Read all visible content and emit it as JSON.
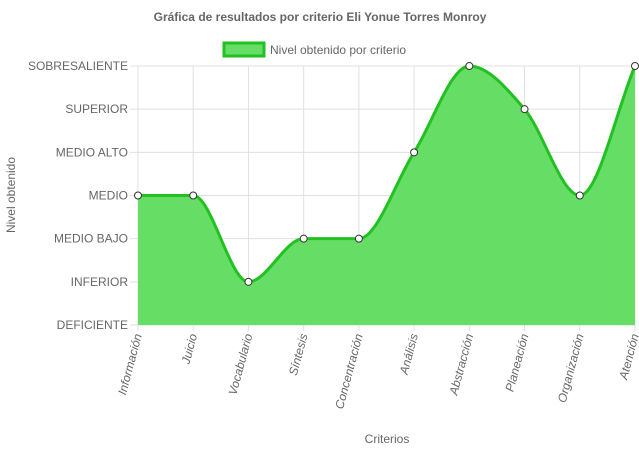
{
  "chart_data": {
    "type": "area",
    "title": "Gráfica de resultados por criterio Eli Yonue Torres Monroy",
    "xlabel": "Criterios",
    "ylabel": "Nivel obtenido",
    "categories": [
      "Información",
      "Juicio",
      "Vocabulario",
      "Síntesis",
      "Concentración",
      "Análisis",
      "Abstracción",
      "Planeación",
      "Organización",
      "Atención"
    ],
    "y_levels": [
      "DEFICIENTE",
      "INFERIOR",
      "MEDIO BAJO",
      "MEDIO",
      "MEDIO ALTO",
      "SUPERIOR",
      "SOBRESALIENTE"
    ],
    "ylim": [
      0,
      6
    ],
    "series": [
      {
        "name": "Nivel obtenido por criterio",
        "values": [
          3,
          3,
          1,
          2,
          2,
          4,
          6,
          5,
          3,
          6
        ]
      }
    ],
    "legend_position": "top",
    "grid": true,
    "colors": {
      "fill": "#66de66",
      "line": "#22c122",
      "grid": "#e0e0e0",
      "text": "#666666"
    }
  }
}
